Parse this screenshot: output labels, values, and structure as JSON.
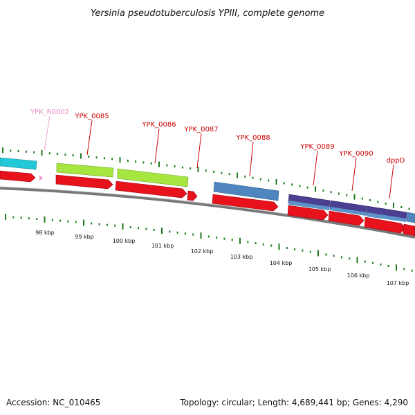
{
  "title": "Yersinia pseudotuberculosis YPIII, complete genome",
  "footer": {
    "accession": "Accession: NC_010465",
    "summary": "Topology: circular; Length: 4,689,441 bp; Genes: 4,290"
  },
  "colors": {
    "backbone": "#7a7a7a",
    "cds_arrow": "#e8121d",
    "tick": "#1f7a1f",
    "label_red": "#cc0000",
    "label_pink": "#e888c4",
    "cyan": "#22c8d8",
    "lime": "#a6e640",
    "steelblue": "#4f86bf",
    "indigo": "#4a3f90"
  },
  "tick_labels": [
    "98 kbp",
    "99 kbp",
    "100 kbp",
    "101 kbp",
    "102 kbp",
    "103 kbp",
    "104 kbp",
    "105 kbp",
    "106 kbp",
    "107 kbp"
  ],
  "genes": [
    {
      "label": "YPK_R0002",
      "kind": "rna"
    },
    {
      "label": "YPK_0085",
      "kind": "cds"
    },
    {
      "label": "YPK_0086",
      "kind": "cds"
    },
    {
      "label": "YPK_0087",
      "kind": "cds"
    },
    {
      "label": "YPK_0088",
      "kind": "cds"
    },
    {
      "label": "YPK_0089",
      "kind": "cds"
    },
    {
      "label": "YPK_0090",
      "kind": "cds"
    },
    {
      "label": "dppD",
      "kind": "cds"
    }
  ]
}
